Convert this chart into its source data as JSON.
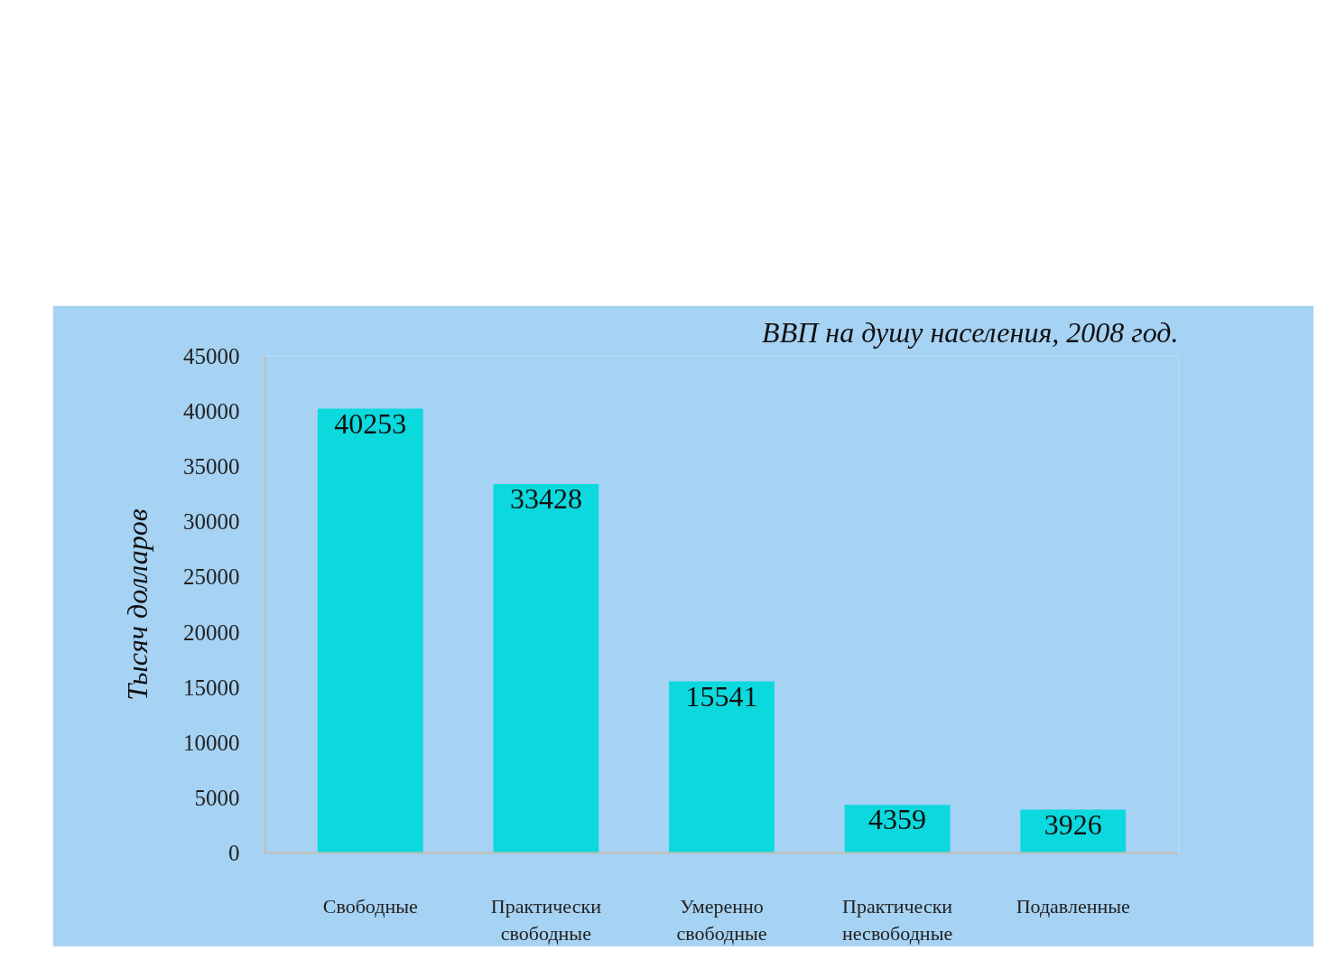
{
  "chart_data": {
    "type": "bar",
    "title": "ВВП на душу населения, 2008 год.",
    "ylabel": "Тысяч долларов",
    "categories": [
      "Свободные",
      "Практически свободные",
      "Умеренно свободные",
      "Практически несвободные",
      "Подавленные"
    ],
    "values": [
      40253,
      33428,
      15541,
      4359,
      3926
    ],
    "color": "#0bd9de",
    "ylim": [
      0,
      45000
    ],
    "yticks": [
      0,
      5000,
      10000,
      15000,
      20000,
      25000,
      30000,
      35000,
      40000,
      45000
    ],
    "data_labels": true
  }
}
